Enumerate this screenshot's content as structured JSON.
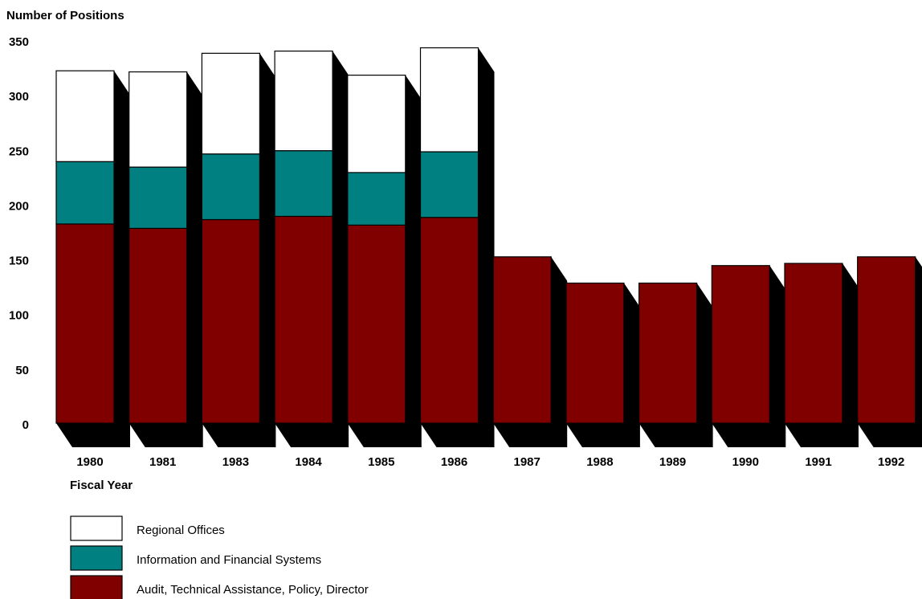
{
  "chart_data": {
    "type": "bar",
    "stacked": true,
    "style": "3d-shadow",
    "title": "",
    "ylabel": "Number of Positions",
    "xlabel": "Fiscal Year",
    "ylim": [
      0,
      350
    ],
    "yticks": [
      0,
      50,
      100,
      150,
      200,
      250,
      300,
      350
    ],
    "categories": [
      "1980",
      "1981",
      "1983",
      "1984",
      "1985",
      "1986",
      "1987",
      "1988",
      "1989",
      "1990",
      "1991",
      "1992"
    ],
    "series": [
      {
        "name": "Audit, Technical Assistance, Policy, Director",
        "color": "#800000",
        "values": [
          182,
          178,
          186,
          189,
          181,
          188,
          152,
          128,
          128,
          144,
          146,
          152
        ]
      },
      {
        "name": "Information and Financial Systems",
        "color": "#008080",
        "values": [
          57,
          56,
          60,
          60,
          48,
          60,
          0,
          0,
          0,
          0,
          0,
          0
        ]
      },
      {
        "name": "Regional Offices",
        "color": "#ffffff",
        "values": [
          83,
          87,
          92,
          91,
          89,
          95,
          0,
          0,
          0,
          0,
          0,
          0
        ]
      }
    ],
    "legend": {
      "placement": "bottom-left",
      "order": [
        "Regional Offices",
        "Information and Financial Systems",
        "Audit, Technical Assistance, Policy, Director"
      ]
    },
    "grid": false
  }
}
